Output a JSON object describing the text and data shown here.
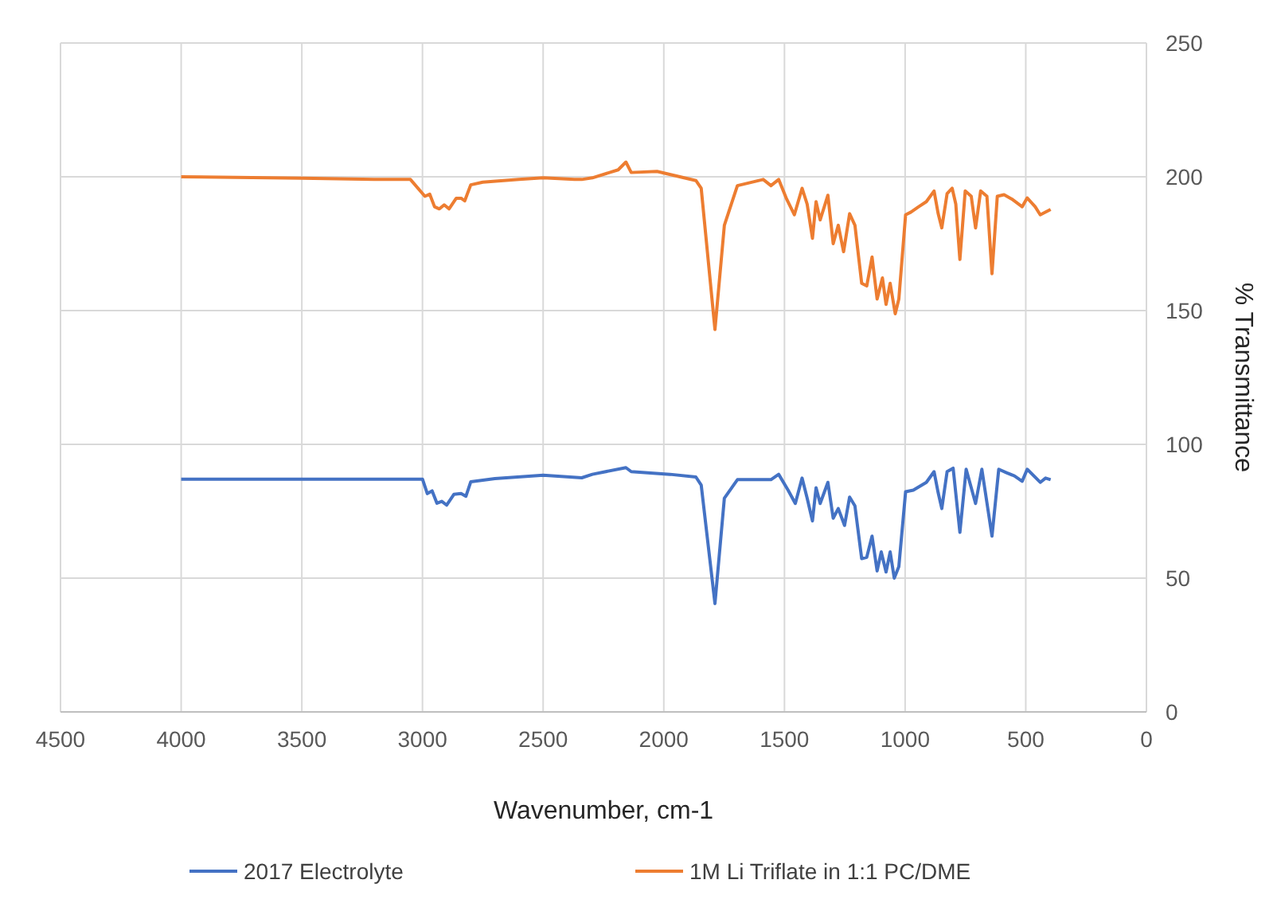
{
  "chart_data": {
    "type": "line",
    "xlabel": "Wavenumber, cm-1",
    "ylabel": "% Transmittance",
    "xlim": [
      4500,
      0
    ],
    "xticks": [
      4500,
      4000,
      3500,
      3000,
      2500,
      2000,
      1500,
      1000,
      500,
      0
    ],
    "ylim": [
      0,
      250
    ],
    "yticks": [
      0,
      50,
      100,
      150,
      200,
      250
    ],
    "grid": true,
    "legend": "bottom",
    "marker": "none",
    "line_style": "solid",
    "series": [
      {
        "name": "2017 Electrolyte",
        "color": "#4472c4",
        "x": [
          4000,
          3500,
          3000,
          2980,
          2960,
          2940,
          2920,
          2900,
          2870,
          2840,
          2820,
          2800,
          2700,
          2500,
          2340,
          2296,
          2157,
          2135,
          1974,
          1867,
          1845,
          1788,
          1749,
          1695,
          1556,
          1524,
          1485,
          1455,
          1427,
          1406,
          1384,
          1369,
          1352,
          1320,
          1298,
          1277,
          1251,
          1230,
          1208,
          1180,
          1159,
          1137,
          1116,
          1099,
          1079,
          1062,
          1045,
          1026,
          998,
          966,
          912,
          880,
          863,
          848,
          826,
          801,
          773,
          747,
          708,
          682,
          640,
          612,
          580,
          547,
          515,
          494,
          440,
          418,
          397
        ],
        "values": [
          87,
          87,
          87,
          81.6,
          82.6,
          78,
          78.7,
          77.3,
          81.3,
          81.6,
          80.6,
          86,
          87.2,
          88.5,
          87.5,
          88.8,
          91.3,
          89.8,
          88.8,
          87.8,
          84.8,
          40.5,
          79.9,
          86.8,
          86.8,
          88.8,
          82.9,
          77.9,
          87.4,
          79.9,
          71.4,
          83.8,
          77.9,
          85.8,
          72.4,
          76,
          69.7,
          80.3,
          77,
          57.3,
          57.8,
          65.7,
          52.7,
          59.8,
          52.3,
          59.8,
          50,
          54.3,
          82.3,
          82.9,
          85.8,
          89.8,
          81.9,
          76,
          89.8,
          91.1,
          67.1,
          90.7,
          77.9,
          90.7,
          65.7,
          90.7,
          89.4,
          88.2,
          86.2,
          90.7,
          85.8,
          87.4,
          86.8
        ]
      },
      {
        "name": "1M Li Triflate in 1:1 PC/DME",
        "color": "#ed7d31",
        "x": [
          4000,
          3500,
          3200,
          3050,
          2990,
          2970,
          2950,
          2930,
          2910,
          2890,
          2860,
          2840,
          2825,
          2800,
          2750,
          2600,
          2500,
          2370,
          2340,
          2296,
          2189,
          2157,
          2135,
          2028,
          1867,
          1845,
          1788,
          1749,
          1695,
          1588,
          1556,
          1524,
          1491,
          1459,
          1427,
          1406,
          1384,
          1369,
          1352,
          1320,
          1298,
          1277,
          1255,
          1230,
          1208,
          1180,
          1159,
          1137,
          1116,
          1094,
          1079,
          1062,
          1041,
          1026,
          998,
          976,
          944,
          912,
          880,
          863,
          848,
          826,
          805,
          790,
          773,
          751,
          726,
          708,
          687,
          661,
          640,
          618,
          590,
          558,
          515,
          494,
          461,
          440,
          397
        ],
        "values": [
          200,
          199.5,
          199,
          199,
          192.7,
          193.5,
          188.8,
          188,
          189.5,
          188,
          192,
          192,
          191,
          197,
          198,
          199,
          199.6,
          199,
          199,
          199.6,
          202.6,
          205.5,
          201.6,
          202,
          198.6,
          195.7,
          142.9,
          181.9,
          196.7,
          199,
          196.7,
          199,
          191.7,
          185.8,
          195.7,
          189.8,
          177,
          190.7,
          183.9,
          193.1,
          175,
          181.9,
          172,
          186.2,
          181.9,
          160.2,
          159.2,
          170,
          154.3,
          162.2,
          152.3,
          160.2,
          148.8,
          154.3,
          185.8,
          186.8,
          188.8,
          190.7,
          194.7,
          186.2,
          180.9,
          193.7,
          195.7,
          189.8,
          169.1,
          194.7,
          192.7,
          180.9,
          194.7,
          192.7,
          163.8,
          192.7,
          193.3,
          191.7,
          188.8,
          192.1,
          188.8,
          185.8,
          187.8
        ]
      }
    ]
  }
}
